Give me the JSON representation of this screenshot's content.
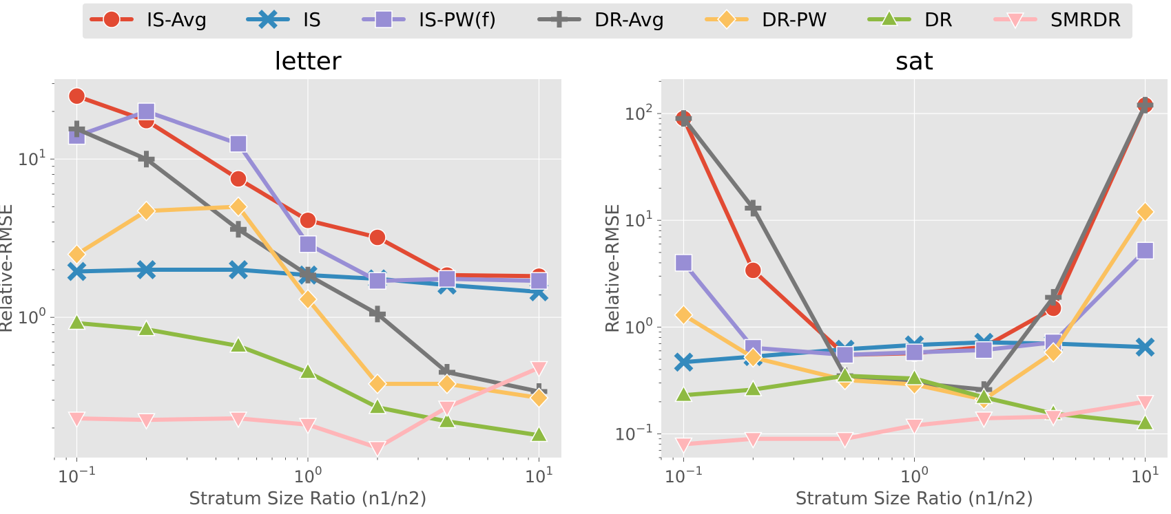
{
  "chart_data": [
    {
      "type": "line",
      "title": "letter",
      "xlabel": "Stratum Size Ratio (n1/n2)",
      "ylabel": "Relative-RMSE",
      "xscale": "log",
      "yscale": "log",
      "xlim": [
        0.08,
        12.5
      ],
      "ylim": [
        0.13,
        32
      ],
      "x": [
        0.1,
        0.2,
        0.5,
        1,
        2,
        4,
        10
      ],
      "xticks": [
        {
          "value": 0.1,
          "base": "10",
          "exp": "−1"
        },
        {
          "value": 1,
          "base": "10",
          "exp": "0"
        },
        {
          "value": 10,
          "base": "10",
          "exp": "1"
        }
      ],
      "yticks": [
        {
          "value": 1,
          "base": "10",
          "exp": "0"
        },
        {
          "value": 10,
          "base": "10",
          "exp": "1"
        }
      ],
      "grid": true,
      "series": [
        {
          "name": "IS-Avg",
          "values": [
            25,
            17.5,
            7.5,
            4.1,
            3.2,
            1.85,
            1.82
          ]
        },
        {
          "name": "IS",
          "values": [
            1.95,
            2.0,
            2.0,
            1.85,
            1.75,
            1.6,
            1.45
          ]
        },
        {
          "name": "IS-PW(f)",
          "values": [
            14,
            20,
            12.5,
            2.9,
            1.7,
            1.75,
            1.7
          ]
        },
        {
          "name": "DR-Avg",
          "values": [
            15.5,
            10,
            3.6,
            1.85,
            1.05,
            0.45,
            0.34
          ]
        },
        {
          "name": "DR-PW",
          "values": [
            2.5,
            4.7,
            5.0,
            1.3,
            0.38,
            0.38,
            0.31
          ]
        },
        {
          "name": "DR",
          "values": [
            0.92,
            0.84,
            0.66,
            0.45,
            0.27,
            0.22,
            0.18
          ]
        },
        {
          "name": "SMRDR",
          "values": [
            0.23,
            0.225,
            0.23,
            0.21,
            0.15,
            0.27,
            0.48
          ]
        }
      ]
    },
    {
      "type": "line",
      "title": "sat",
      "xlabel": "Stratum Size Ratio (n1/n2)",
      "ylabel": "Relative-RMSE",
      "xscale": "log",
      "yscale": "log",
      "xlim": [
        0.08,
        12.5
      ],
      "ylim": [
        0.06,
        210
      ],
      "x": [
        0.1,
        0.2,
        0.5,
        1,
        2,
        4,
        10
      ],
      "xticks": [
        {
          "value": 0.1,
          "base": "10",
          "exp": "−1"
        },
        {
          "value": 1,
          "base": "10",
          "exp": "0"
        },
        {
          "value": 10,
          "base": "10",
          "exp": "1"
        }
      ],
      "yticks": [
        {
          "value": 0.1,
          "base": "10",
          "exp": "−1"
        },
        {
          "value": 1,
          "base": "10",
          "exp": "0"
        },
        {
          "value": 10,
          "base": "10",
          "exp": "1"
        },
        {
          "value": 100,
          "base": "10",
          "exp": "2"
        }
      ],
      "grid": true,
      "series": [
        {
          "name": "IS-Avg",
          "values": [
            90,
            3.4,
            0.55,
            0.57,
            0.65,
            1.5,
            120
          ]
        },
        {
          "name": "IS",
          "values": [
            0.47,
            0.53,
            0.62,
            0.68,
            0.72,
            0.7,
            0.65
          ]
        },
        {
          "name": "IS-PW(f)",
          "values": [
            4.0,
            0.64,
            0.55,
            0.58,
            0.61,
            0.72,
            5.2
          ]
        },
        {
          "name": "DR-Avg",
          "values": [
            90,
            13,
            0.35,
            0.3,
            0.26,
            1.9,
            120
          ]
        },
        {
          "name": "DR-PW",
          "values": [
            1.3,
            0.52,
            0.32,
            0.29,
            0.21,
            0.58,
            12
          ]
        },
        {
          "name": "DR",
          "values": [
            0.23,
            0.26,
            0.35,
            0.33,
            0.22,
            0.155,
            0.125
          ]
        },
        {
          "name": "SMRDR",
          "values": [
            0.08,
            0.09,
            0.09,
            0.12,
            0.14,
            0.145,
            0.2
          ]
        }
      ]
    }
  ],
  "legend": {
    "placement": "top-center",
    "entries": [
      {
        "name": "IS-Avg",
        "color": "#E24A33",
        "marker": "circle"
      },
      {
        "name": "IS",
        "color": "#348ABD",
        "marker": "x"
      },
      {
        "name": "IS-PW(f)",
        "color": "#988ED5",
        "marker": "square"
      },
      {
        "name": "DR-Avg",
        "color": "#777777",
        "marker": "plus"
      },
      {
        "name": "DR-PW",
        "color": "#FBC15E",
        "marker": "diamond"
      },
      {
        "name": "DR",
        "color": "#8EBA42",
        "marker": "triangle-up"
      },
      {
        "name": "SMRDR",
        "color": "#FFB5B8",
        "marker": "triangle-down"
      }
    ]
  },
  "colors": {
    "plot_background": "#E5E5E5",
    "grid": "#FFFFFF",
    "legend_background": "#E5E5E5"
  }
}
